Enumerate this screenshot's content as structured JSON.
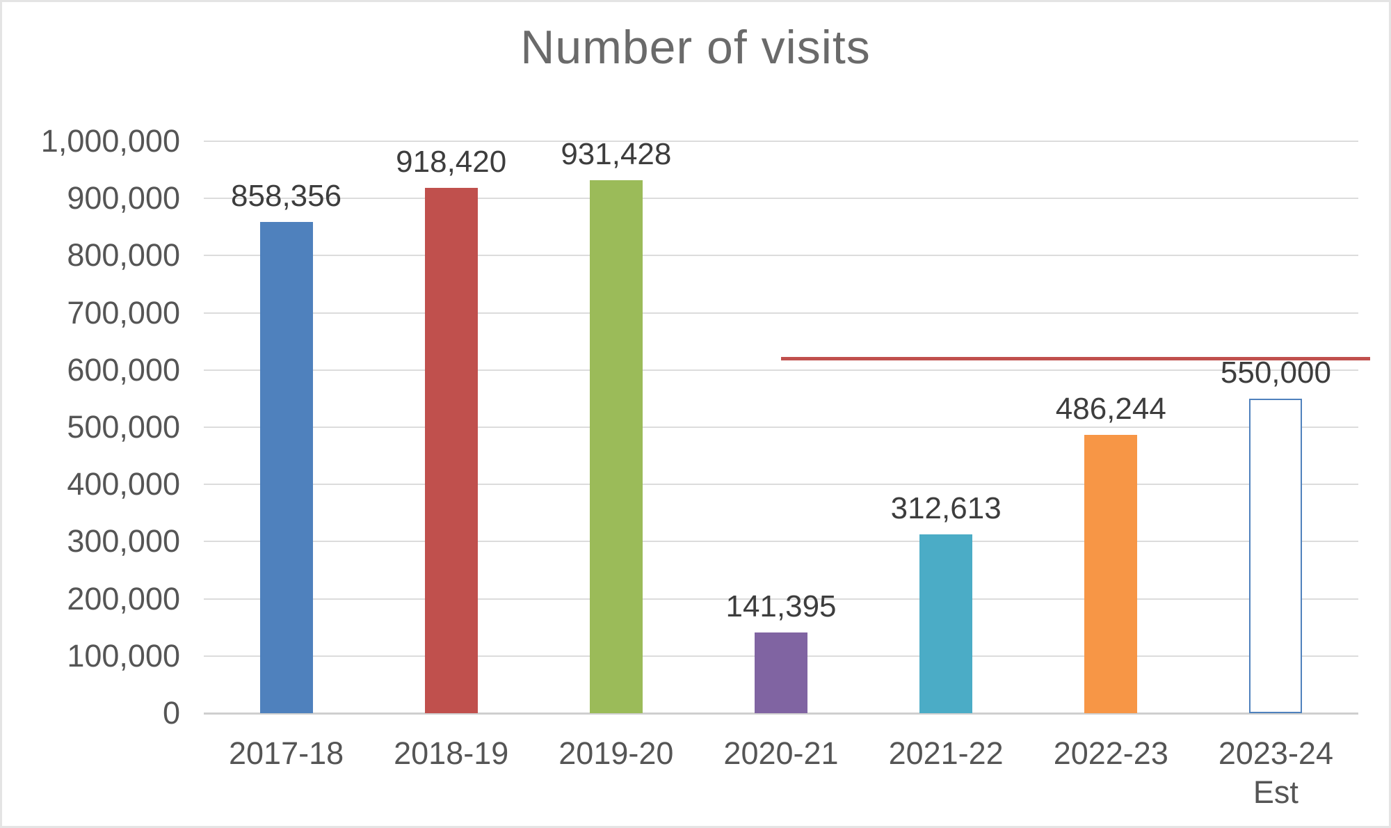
{
  "frame": {
    "background": "#ffffff",
    "border_color": "#e4e4e4"
  },
  "chart_data": {
    "type": "bar",
    "title": "Number of visits",
    "legend": false,
    "grid": true,
    "y_axis": {
      "min": 0,
      "max": 1000000,
      "tick_step": 100000,
      "ticks": [
        {
          "value": 0,
          "label": "0"
        },
        {
          "value": 100000,
          "label": "100,000"
        },
        {
          "value": 200000,
          "label": "200,000"
        },
        {
          "value": 300000,
          "label": "300,000"
        },
        {
          "value": 400000,
          "label": "400,000"
        },
        {
          "value": 500000,
          "label": "500,000"
        },
        {
          "value": 600000,
          "label": "600,000"
        },
        {
          "value": 700000,
          "label": "700,000"
        },
        {
          "value": 800000,
          "label": "800,000"
        },
        {
          "value": 900000,
          "label": "900,000"
        },
        {
          "value": 1000000,
          "label": "1,000,000"
        }
      ]
    },
    "points": [
      {
        "category": "2017-18",
        "value": 858356,
        "data_label": "858,356",
        "color": "#4F81BD",
        "fill_style": "solid"
      },
      {
        "category": "2018-19",
        "value": 918420,
        "data_label": "918,420",
        "color": "#C0504D",
        "fill_style": "solid"
      },
      {
        "category": "2019-20",
        "value": 931428,
        "data_label": "931,428",
        "color": "#9BBB59",
        "fill_style": "solid"
      },
      {
        "category": "2020-21",
        "value": 141395,
        "data_label": "141,395",
        "color": "#8064A2",
        "fill_style": "solid"
      },
      {
        "category": "2021-22",
        "value": 312613,
        "data_label": "312,613",
        "color": "#4BACC6",
        "fill_style": "solid"
      },
      {
        "category": "2022-23",
        "value": 486244,
        "data_label": "486,244",
        "color": "#F79646",
        "fill_style": "solid"
      },
      {
        "category": "2023-24",
        "category_line2": "Est",
        "value": 550000,
        "data_label": "550,000",
        "color": "#4F81BD",
        "fill_style": "outline"
      }
    ],
    "reference_line": {
      "value_estimate": 620000,
      "color": "#C0504D",
      "label": null,
      "starts_at_category": "2020-21",
      "start_category_index": 3,
      "note": "unlabeled horizontal red reference line running from the 2020-21 column to past the right edge of the plot"
    },
    "colors": {
      "title": "#6a6a6a",
      "tick_label": "#555555",
      "data_label": "#3d3d3d",
      "x_label": "#555555",
      "gridline": "#dcdcdc",
      "axis_line": "#cfcfcf"
    }
  }
}
